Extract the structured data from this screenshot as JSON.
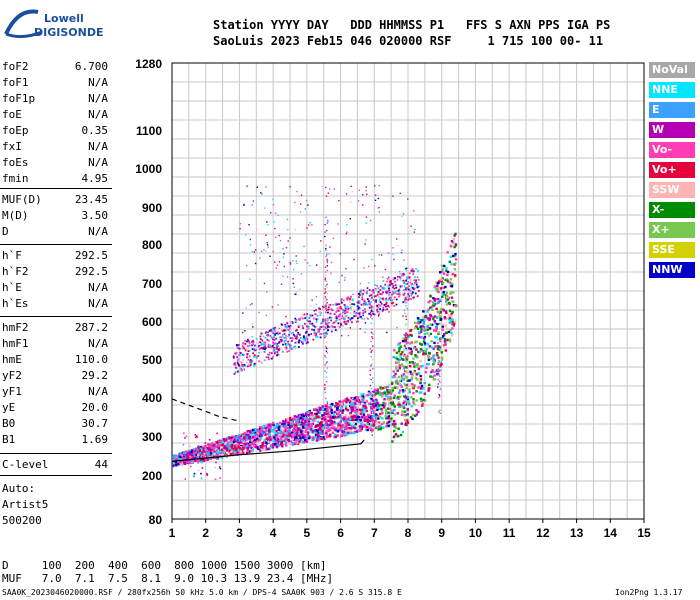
{
  "header": {
    "logo_top": "Lowell",
    "logo_bottom": "DIGISONDE",
    "line1": "Station YYYY DAY   DDD HHMMSS P1   FFS S AXN PPS IGA PS",
    "line2": "SaoLuis 2023 Feb15 046 020000 RSF     1 715 100 00- 11"
  },
  "params": [
    {
      "name": "foF2",
      "value": "6.700"
    },
    {
      "name": "foF1",
      "value": "N/A"
    },
    {
      "name": "foF1p",
      "value": "N/A"
    },
    {
      "name": "foE",
      "value": "N/A"
    },
    {
      "name": "foEp",
      "value": "0.35"
    },
    {
      "name": "fxI",
      "value": "N/A"
    },
    {
      "name": "foEs",
      "value": "N/A"
    },
    {
      "name": "fmin",
      "value": "4.95"
    },
    {
      "name": "MUF(D)",
      "value": "23.45"
    },
    {
      "name": "M(D)",
      "value": "3.50"
    },
    {
      "name": "D",
      "value": "N/A"
    },
    {
      "name": "h`F",
      "value": "292.5"
    },
    {
      "name": "h`F2",
      "value": "292.5"
    },
    {
      "name": "h`E",
      "value": "N/A"
    },
    {
      "name": "h`Es",
      "value": "N/A"
    },
    {
      "name": "hmF2",
      "value": "287.2"
    },
    {
      "name": "hmF1",
      "value": "N/A"
    },
    {
      "name": "hmE",
      "value": "110.0"
    },
    {
      "name": "yF2",
      "value": "29.2"
    },
    {
      "name": "yF1",
      "value": "N/A"
    },
    {
      "name": "yE",
      "value": "20.0"
    },
    {
      "name": "B0",
      "value": "30.7"
    },
    {
      "name": "B1",
      "value": "1.69"
    },
    {
      "name": "C-level",
      "value": "44"
    }
  ],
  "auto": {
    "line1": "Auto:",
    "line2": "Artist5",
    "line3": "500200"
  },
  "legend": [
    {
      "label": "NoVal",
      "color": "#a8a8a8"
    },
    {
      "label": "NNE",
      "color": "#00e6ff"
    },
    {
      "label": "E",
      "color": "#3ca0ff"
    },
    {
      "label": "W",
      "color": "#b400b4"
    },
    {
      "label": "Vo-",
      "color": "#ff3cb4"
    },
    {
      "label": "Vo+",
      "color": "#e6003c"
    },
    {
      "label": "SSW",
      "color": "#ffb4b4"
    },
    {
      "label": "X-",
      "color": "#008c00"
    },
    {
      "label": "X+",
      "color": "#78c850"
    },
    {
      "label": "SSE",
      "color": "#d2d200"
    },
    {
      "label": "NNW",
      "color": "#0000c8"
    }
  ],
  "muf_table": {
    "d_row": "D     100  200  400  600  800 1000 1500 3000 [km]",
    "muf_row": "MUF   7.0  7.1  7.5  8.1  9.0 10.3 13.9 23.4 [MHz]"
  },
  "footer": {
    "left": "SAA0K_2023046020000.RSF / 280fx256h 50 kHz 5.0 km / DPS-4 SAA0K 903 / 2.6 S 315.8 E",
    "right": "Ion2Png 1.3.17"
  },
  "chart_data": {
    "type": "scatter",
    "title": "",
    "xlabel": "",
    "ylabel": "",
    "xlim": [
      1,
      15
    ],
    "ylim": [
      80,
      1280
    ],
    "y_scale": "quasi-log",
    "x_ticks": [
      1,
      2,
      3,
      4,
      5,
      6,
      7,
      8,
      9,
      10,
      11,
      12,
      13,
      14,
      15
    ],
    "y_ticks": [
      80,
      200,
      300,
      400,
      500,
      600,
      700,
      800,
      900,
      1000,
      1100,
      1280
    ],
    "grid": true,
    "traces": [
      {
        "x": [
          1.0,
          3.0,
          4.6,
          6.6,
          6.7
        ],
        "y": [
          235,
          252,
          262,
          280,
          290
        ]
      },
      {
        "x": [
          1.0,
          2.4,
          3.0
        ],
        "y": [
          395,
          350,
          338
        ]
      }
    ]
  }
}
